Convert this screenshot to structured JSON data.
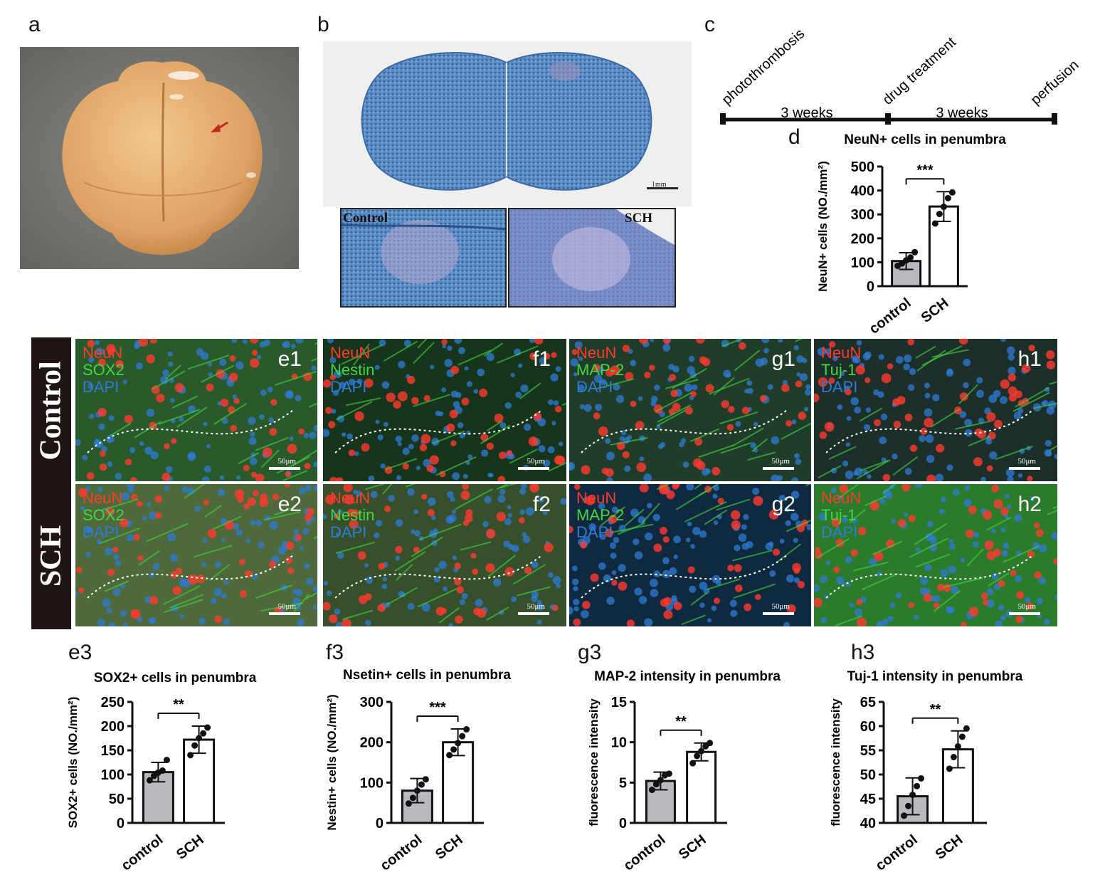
{
  "panel_labels": {
    "a": "a",
    "b": "b",
    "c": "c",
    "d": "d",
    "e3": "e3",
    "f3": "f3",
    "g3": "g3",
    "h3": "h3"
  },
  "panel_b": {
    "scale": "1mm",
    "inset_left": "Control",
    "inset_right": "SCH"
  },
  "timeline": {
    "events": [
      "photothrombosis",
      "drug treatment",
      "perfusion"
    ],
    "intervals": [
      "3 weeks",
      "3 weeks"
    ]
  },
  "rows": {
    "top": "Control",
    "bottom": "SCH"
  },
  "micro_panels": [
    {
      "id": "e1",
      "markers": [
        "NeuN",
        "SOX2",
        "DAPI"
      ],
      "scale": "50μm"
    },
    {
      "id": "f1",
      "markers": [
        "NeuN",
        "Nestin",
        "DAPI"
      ],
      "scale": "50μm"
    },
    {
      "id": "g1",
      "markers": [
        "NeuN",
        "MAP-2",
        "DAPI"
      ],
      "scale": "50μm"
    },
    {
      "id": "h1",
      "markers": [
        "NeuN",
        "Tuj-1",
        "DAPI"
      ],
      "scale": "50μm"
    },
    {
      "id": "e2",
      "markers": [
        "NeuN",
        "SOX2",
        "DAPI"
      ],
      "scale": "50μm"
    },
    {
      "id": "f2",
      "markers": [
        "NeuN",
        "Nestin",
        "DAPI"
      ],
      "scale": "50μm"
    },
    {
      "id": "g2",
      "markers": [
        "NeuN",
        "MAP-2",
        "DAPI"
      ],
      "scale": "50μm"
    },
    {
      "id": "h2",
      "markers": [
        "NeuN",
        "Tuj-1",
        "DAPI"
      ],
      "scale": "50μm"
    }
  ],
  "colors": {
    "neun": "#ff3a2e",
    "green": "#42d642",
    "dapi": "#2f7bd6",
    "control_bar": "#b9b9be",
    "sch_bar": "#ffffff"
  },
  "chart_data": [
    {
      "id": "d",
      "type": "bar",
      "title": "NeuN+ cells in penumbra",
      "ylabel": "NeuN+ cells (NO./mm²)",
      "categories": [
        "control",
        "SCH"
      ],
      "values": [
        105,
        333
      ],
      "errors": [
        35,
        62
      ],
      "ylim": [
        0,
        500
      ],
      "yticks": [
        0,
        100,
        200,
        300,
        400,
        500
      ],
      "points": [
        [
          85,
          95,
          108,
          120,
          142
        ],
        [
          262,
          302,
          332,
          368,
          392
        ]
      ],
      "significance": "***"
    },
    {
      "id": "e3",
      "type": "bar",
      "title": "SOX2+ cells in penumbra",
      "ylabel": "SOX2+ cells (NO./mm²)",
      "categories": [
        "control",
        "SCH"
      ],
      "values": [
        105,
        172
      ],
      "errors": [
        20,
        28
      ],
      "ylim": [
        0,
        250
      ],
      "yticks": [
        0,
        50,
        100,
        150,
        200,
        250
      ],
      "points": [
        [
          88,
          97,
          104,
          108,
          130
        ],
        [
          140,
          160,
          175,
          185,
          197
        ]
      ],
      "significance": "**"
    },
    {
      "id": "f3",
      "type": "bar",
      "title": "Nsetin+ cells in penumbra",
      "ylabel": "Nestin+ cells (NO./mm²)",
      "categories": [
        "control",
        "SCH"
      ],
      "values": [
        80,
        200
      ],
      "errors": [
        30,
        33
      ],
      "ylim": [
        0,
        300
      ],
      "yticks": [
        0,
        100,
        200,
        300
      ],
      "points": [
        [
          48,
          62,
          80,
          95,
          108
        ],
        [
          168,
          182,
          198,
          215,
          232
        ]
      ],
      "significance": "***"
    },
    {
      "id": "g3",
      "type": "bar",
      "title": "MAP-2 intensity in penumbra",
      "ylabel": "fluorescence intensity",
      "categories": [
        "control",
        "SCH"
      ],
      "values": [
        5.2,
        8.8
      ],
      "errors": [
        1.1,
        1.1
      ],
      "ylim": [
        0,
        15
      ],
      "yticks": [
        0,
        5,
        10,
        15
      ],
      "points": [
        [
          4.1,
          4.8,
          5.3,
          5.9,
          6.1
        ],
        [
          7.4,
          8.3,
          8.9,
          9.5,
          9.9
        ]
      ],
      "significance": "**"
    },
    {
      "id": "h3",
      "type": "bar",
      "title": "Tuj-1 intensity in penumbra",
      "ylabel": "fluorescence intensity",
      "categories": [
        "control",
        "SCH"
      ],
      "values": [
        45.5,
        55.2
      ],
      "errors": [
        3.8,
        3.8
      ],
      "ylim": [
        40,
        65
      ],
      "yticks": [
        40,
        45,
        50,
        55,
        60,
        65
      ],
      "points": [
        [
          41.5,
          43.5,
          45.8,
          47.6,
          49.2
        ],
        [
          51.2,
          53.6,
          55.8,
          57.8,
          59.5
        ]
      ],
      "significance": "**"
    }
  ]
}
